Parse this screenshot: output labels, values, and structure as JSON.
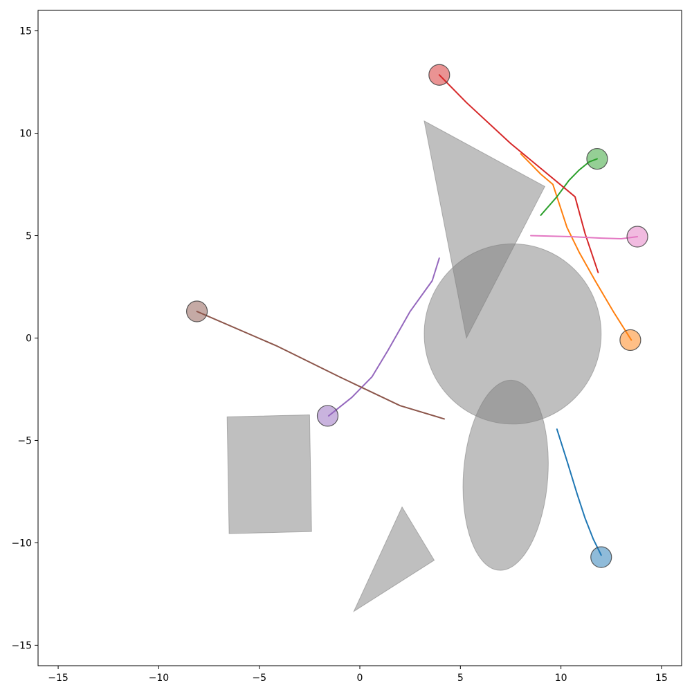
{
  "chart_data": {
    "type": "scatter",
    "title": "",
    "xlabel": "",
    "ylabel": "",
    "xlim": [
      -16,
      16
    ],
    "ylim": [
      -16,
      16
    ],
    "xticks": [
      -15,
      -10,
      -5,
      0,
      5,
      10,
      15
    ],
    "yticks": [
      -15,
      -10,
      -5,
      0,
      5,
      10,
      15
    ],
    "grid": false,
    "obstacles": [
      {
        "shape": "polygon",
        "points": [
          [
            3.2,
            10.6
          ],
          [
            9.2,
            7.4
          ],
          [
            5.3,
            0.0
          ]
        ]
      },
      {
        "shape": "circle",
        "center": [
          7.6,
          0.2
        ],
        "radius": 4.4
      },
      {
        "shape": "ellipse",
        "center": [
          7.25,
          -6.7
        ],
        "rx": 2.1,
        "ry": 4.65,
        "rotation": 4
      },
      {
        "shape": "polygon",
        "points": [
          [
            -6.6,
            -3.85
          ],
          [
            -2.5,
            -3.75
          ],
          [
            -2.4,
            -9.45
          ],
          [
            -6.5,
            -9.55
          ]
        ]
      },
      {
        "shape": "polygon",
        "points": [
          [
            2.1,
            -8.25
          ],
          [
            3.7,
            -10.85
          ],
          [
            -0.3,
            -13.35
          ]
        ]
      }
    ],
    "series": [
      {
        "color": "#1f77b4",
        "marker": [
          12.0,
          -10.7
        ],
        "path": [
          [
            9.8,
            -4.45
          ],
          [
            10.3,
            -6.0
          ],
          [
            10.8,
            -7.6
          ],
          [
            11.2,
            -8.8
          ],
          [
            11.6,
            -9.8
          ],
          [
            12.0,
            -10.6
          ]
        ]
      },
      {
        "color": "#ff7f0e",
        "marker": [
          13.45,
          -0.1
        ],
        "path": [
          [
            8.0,
            9.0
          ],
          [
            9.0,
            8.0
          ],
          [
            9.6,
            7.5
          ],
          [
            9.9,
            6.6
          ],
          [
            10.3,
            5.4
          ],
          [
            10.9,
            4.2
          ],
          [
            11.7,
            2.8
          ],
          [
            12.6,
            1.3
          ],
          [
            13.5,
            -0.1
          ]
        ]
      },
      {
        "color": "#2ca02c",
        "marker": [
          11.8,
          8.75
        ],
        "path": [
          [
            9.0,
            6.0
          ],
          [
            9.8,
            6.9
          ],
          [
            10.4,
            7.7
          ],
          [
            10.9,
            8.2
          ],
          [
            11.4,
            8.6
          ],
          [
            11.8,
            8.75
          ]
        ]
      },
      {
        "color": "#d62728",
        "marker": [
          3.95,
          12.85
        ],
        "path": [
          [
            3.95,
            12.85
          ],
          [
            5.3,
            11.5
          ],
          [
            7.5,
            9.5
          ],
          [
            10.7,
            6.9
          ],
          [
            11.2,
            5.1
          ],
          [
            11.85,
            3.2
          ]
        ]
      },
      {
        "color": "#9467bd",
        "marker": [
          -1.6,
          -3.8
        ],
        "path": [
          [
            -1.55,
            -3.8
          ],
          [
            -0.4,
            -2.9
          ],
          [
            0.6,
            -1.9
          ],
          [
            1.4,
            -0.6
          ],
          [
            2.5,
            1.3
          ],
          [
            3.6,
            2.8
          ],
          [
            3.95,
            3.9
          ]
        ]
      },
      {
        "color": "#8c564b",
        "marker": [
          -8.1,
          1.3
        ],
        "path": [
          [
            -8.1,
            1.3
          ],
          [
            -4.1,
            -0.4
          ],
          [
            -1.0,
            -1.9
          ],
          [
            2.0,
            -3.3
          ],
          [
            4.2,
            -3.95
          ]
        ]
      },
      {
        "color": "#e377c2",
        "marker": [
          13.8,
          4.95
        ],
        "path": [
          [
            8.5,
            5.0
          ],
          [
            10.5,
            4.95
          ],
          [
            12.0,
            4.88
          ],
          [
            13.0,
            4.85
          ],
          [
            13.8,
            4.95
          ]
        ]
      }
    ]
  }
}
